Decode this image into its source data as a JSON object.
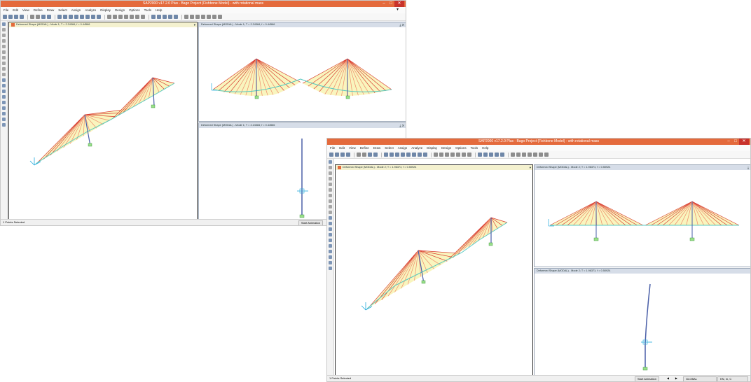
{
  "colors": {
    "titlebar": "#e46a3c",
    "close": "#c8322b",
    "cable": "#d93a2f",
    "cableLight": "#f08a6a",
    "fill": "#f7f1a8",
    "deck": "#58c8c0",
    "pylon": "#4a5fa8"
  },
  "back": {
    "title": "SAP2000 v17.2.0 Plus - Bago Project (Fishbone Model) - with rotational mass",
    "menu": [
      "File",
      "Edit",
      "View",
      "Define",
      "Draw",
      "Select",
      "Assign",
      "Analyze",
      "Display",
      "Design",
      "Options",
      "Tools",
      "Help"
    ],
    "panel_main": "Deformed Shape (MODAL) - Mode 1; T = 2.24384; f = 0.44566",
    "panel_top": "Deformed Shape (MODAL) - Mode 1; T = 2.24384; f = 0.44566",
    "panel_bottom": "Deformed Shape (MODAL) - Mode 1; T = 2.24384; f = 0.44566",
    "status": "1 Points Selected",
    "anim": "Start Animation"
  },
  "front": {
    "title": "SAP2000 v17.2.0 Plus - Bago Project (Fishbone Model) - with rotational mass",
    "menu": [
      "File",
      "Edit",
      "View",
      "Define",
      "Draw",
      "Select",
      "Assign",
      "Analyze",
      "Display",
      "Design",
      "Options",
      "Tools",
      "Help"
    ],
    "panel_main": "Deformed Shape (MODAL) - Mode 2; T = 1.96371; f = 0.50924",
    "panel_top": "Deformed Shape (MODAL) - Mode 2; T = 1.96371; f = 0.50924",
    "panel_bottom": "Deformed Shape (MODAL) - Mode 2; T = 1.96371; f = 0.50924",
    "status": "1 Points Selected",
    "anim": "Start Animation",
    "coord": "GLOBAL",
    "units": "KN, m, C"
  }
}
